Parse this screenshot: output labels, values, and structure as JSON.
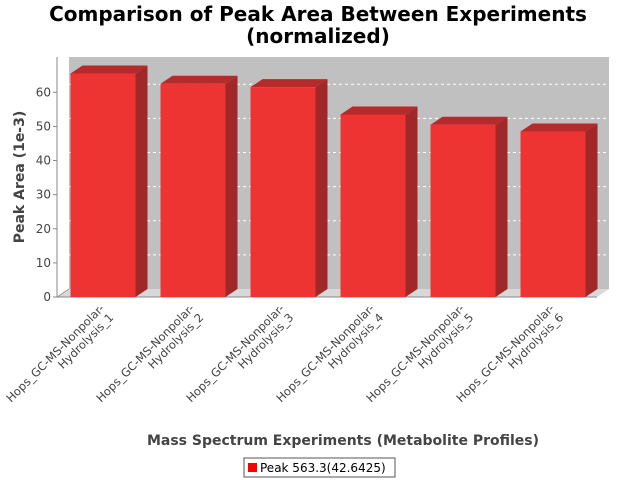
{
  "chart_data": {
    "type": "bar",
    "title_lines": [
      "Comparison of Peak Area Between Experiments",
      "(normalized)"
    ],
    "xlabel": "Mass Spectrum Experiments (Metabolite Profiles)",
    "ylabel": "Peak Area (1e-3)",
    "categories": [
      [
        "Hops_GC-MS-Nonpolar-",
        "Hydrolysis_1"
      ],
      [
        "Hops_GC-MS-Nonpolar-",
        "Hydrolysis_2"
      ],
      [
        "Hops_GC-MS-Nonpolar-",
        "Hydrolysis_3"
      ],
      [
        "Hops_GC-MS-Nonpolar-",
        "Hydrolysis_4"
      ],
      [
        "Hops_GC-MS-Nonpolar-",
        "Hydrolysis_5"
      ],
      [
        "Hops_GC-MS-Nonpolar-",
        "Hydrolysis_6"
      ]
    ],
    "series": [
      {
        "name": "Peak 563.3(42.6425)",
        "values": [
          65.5,
          62.5,
          61.5,
          53.5,
          50.5,
          48.5
        ]
      }
    ],
    "ylim": [
      0,
      68
    ],
    "yticks": [
      "0",
      "10",
      "20",
      "30",
      "40",
      "50",
      "60"
    ],
    "grid": true,
    "legend": "bottom",
    "colors": {
      "bar_front": "#ee3333",
      "bar_top": "#b52a2a",
      "bar_side": "#a02828",
      "plot_back": "#c0c0c0",
      "plot_floor": "#d8d8d8"
    }
  }
}
